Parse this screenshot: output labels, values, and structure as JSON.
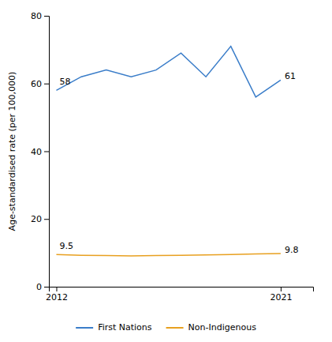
{
  "chart_data": {
    "type": "line",
    "ylabel": "Age-standardised rate (per 100,000)",
    "x": [
      2012,
      2013,
      2014,
      2015,
      2016,
      2017,
      2018,
      2019,
      2020,
      2021
    ],
    "series": [
      {
        "name": "First Nations",
        "color": "#3A7DC9",
        "values": [
          58,
          62,
          64,
          62,
          64,
          69,
          62,
          71,
          56,
          61
        ]
      },
      {
        "name": "Non-Indigenous",
        "color": "#E8A020",
        "values": [
          9.5,
          9.3,
          9.2,
          9.1,
          9.2,
          9.3,
          9.4,
          9.5,
          9.7,
          9.8
        ]
      }
    ],
    "xlim": [
      2011.7,
      2022.3
    ],
    "xticks": [
      2012,
      2021
    ],
    "ylim": [
      0,
      80
    ],
    "yticks": [
      0,
      20,
      40,
      60,
      80
    ],
    "annotations": [
      {
        "text": "58",
        "x": 2012,
        "y": 58
      },
      {
        "text": "61",
        "x": 2021,
        "y": 61
      },
      {
        "text": "9.5",
        "x": 2012,
        "y": 9.5
      },
      {
        "text": "9.8",
        "x": 2021,
        "y": 9.8
      }
    ],
    "grid": false,
    "legend": "bottom"
  }
}
